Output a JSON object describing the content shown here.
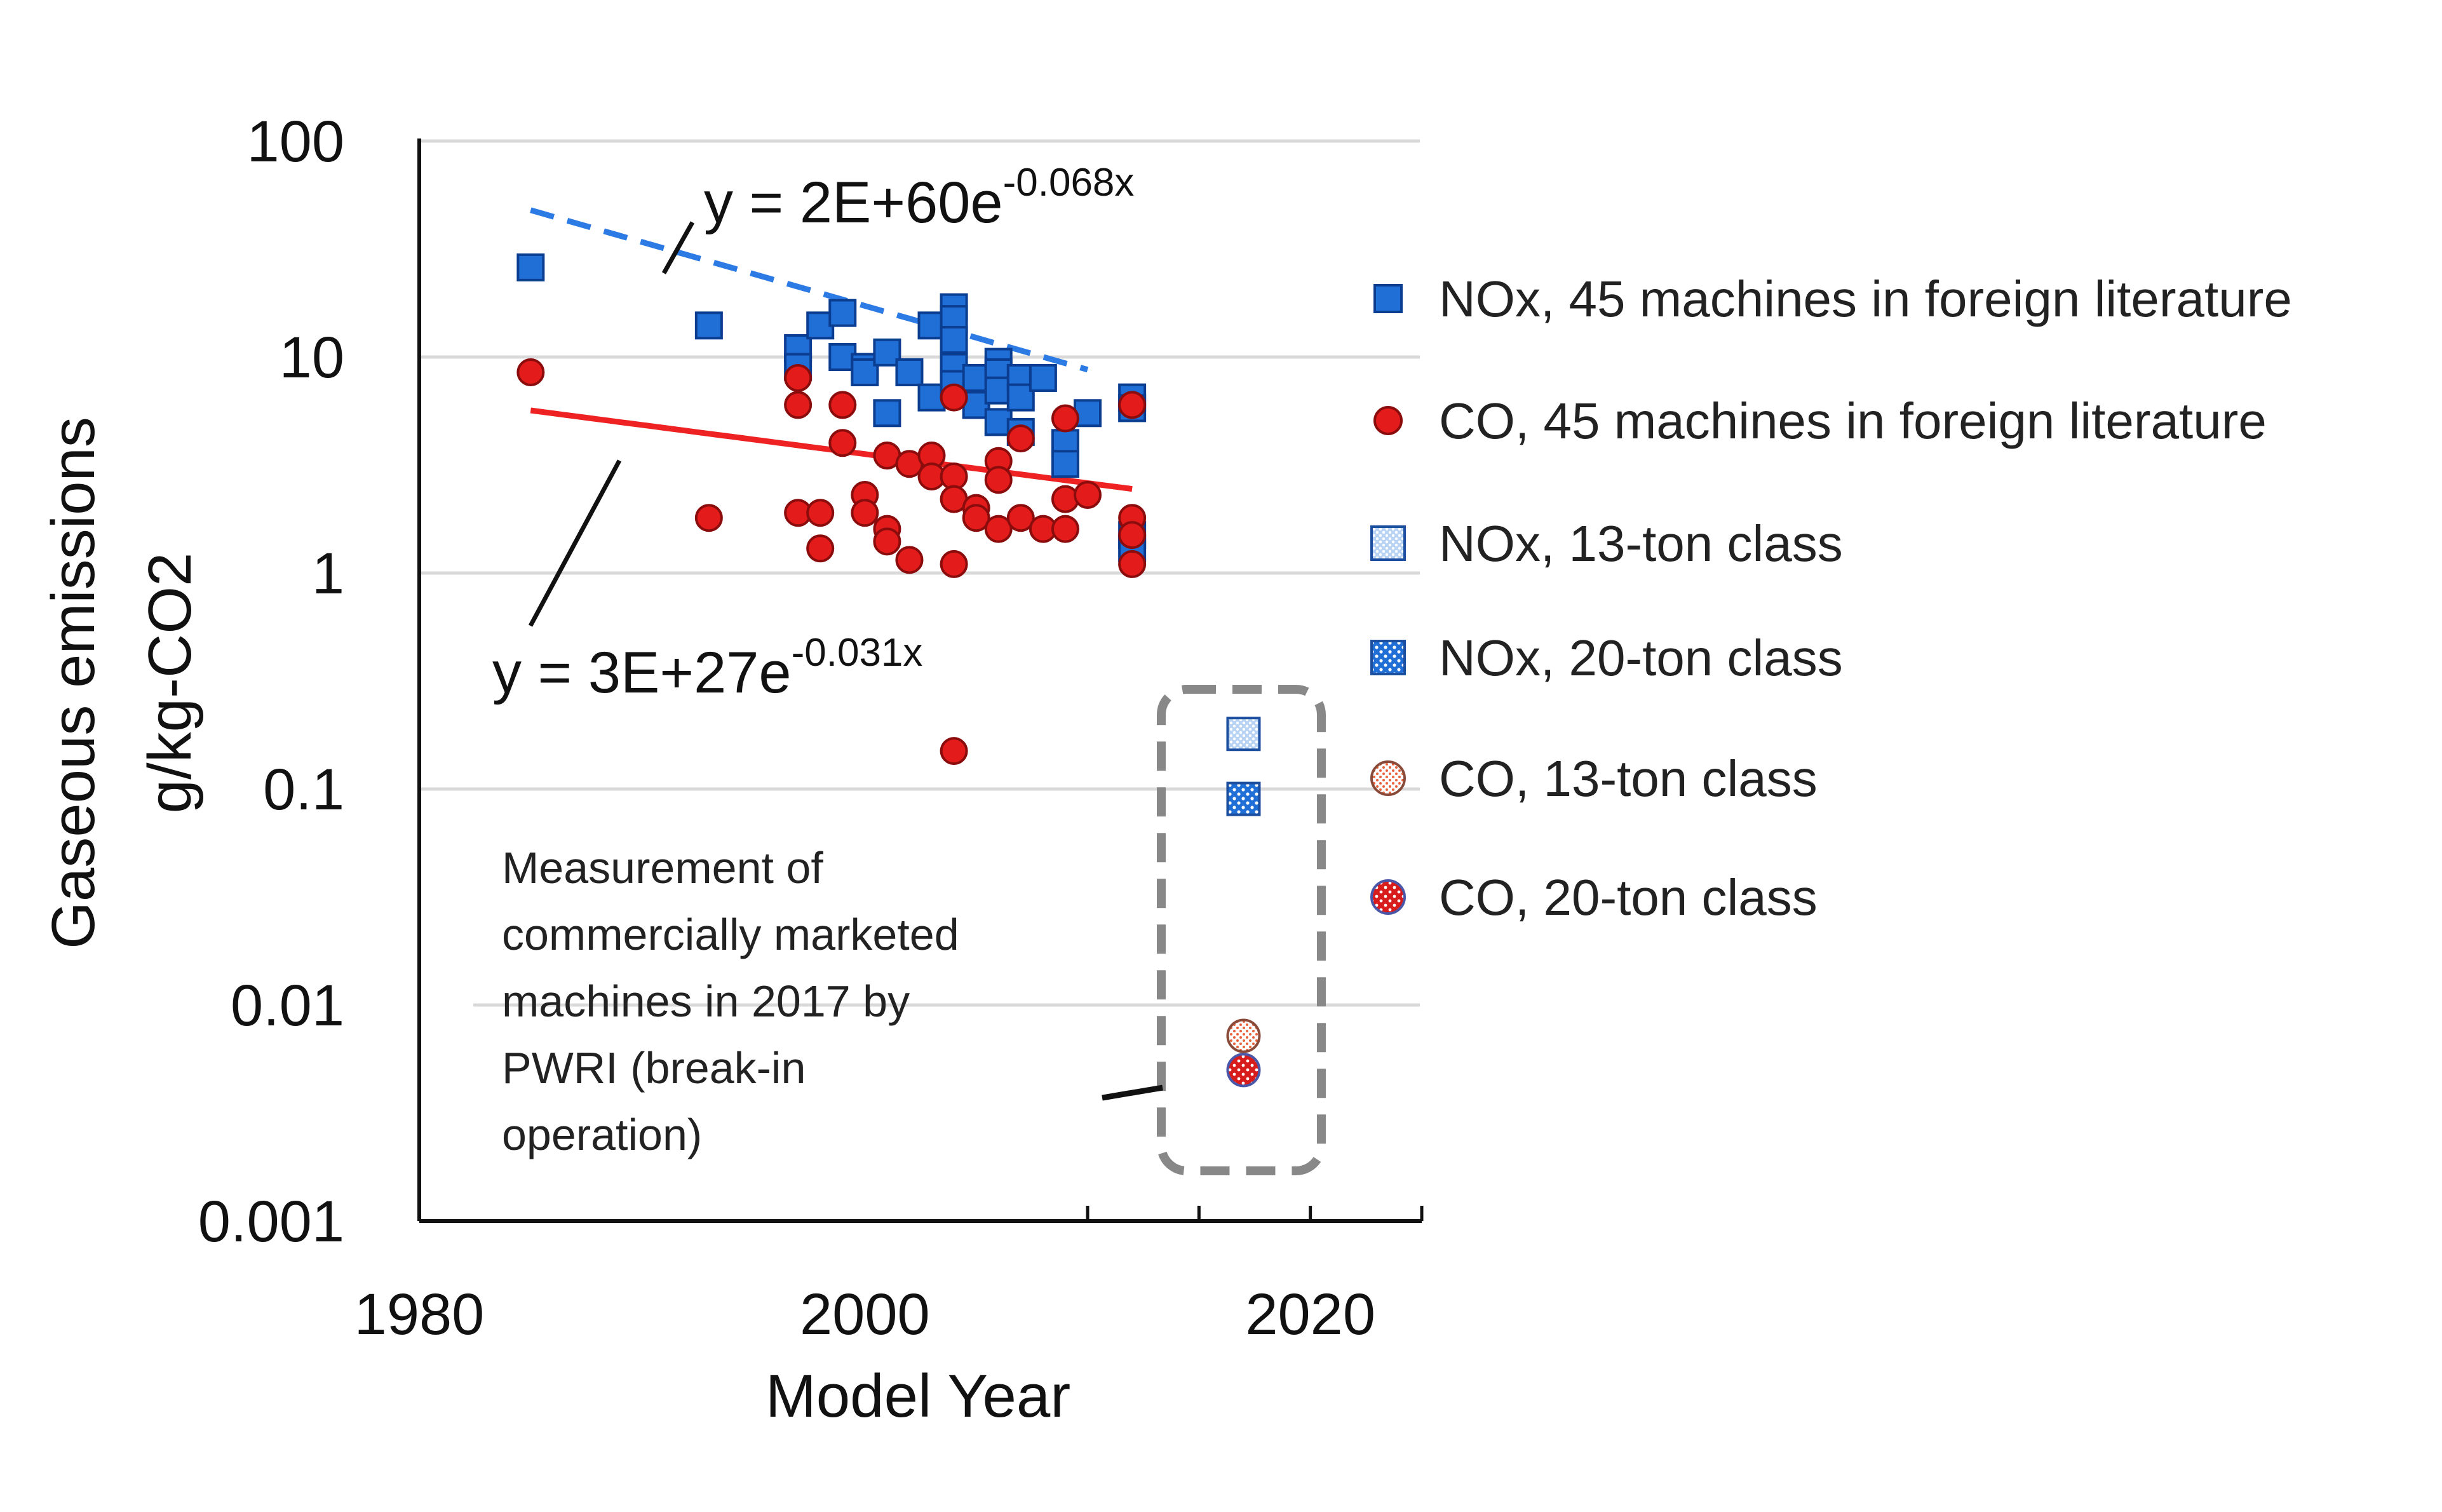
{
  "chart_data": {
    "type": "scatter",
    "xlabel": "Model Year",
    "ylabel_line1": "Gaseous emissions",
    "ylabel_line2": "g/kg-CO2",
    "xlim": [
      1980,
      2025
    ],
    "ylim": [
      0.001,
      100
    ],
    "y_scale": "log",
    "x_ticks": [
      "1980",
      "2000",
      "2020"
    ],
    "y_ticks": [
      "100",
      "10",
      "1",
      "0.1",
      "0.01",
      "0.001"
    ],
    "grid": "horizontal",
    "legend_position": "right",
    "colors": {
      "nox": "#1f6fd6",
      "co": "#e31b1b",
      "nox_trend": "#2c7be5",
      "co_trend": "#ee2222",
      "box": "#888888"
    },
    "trendlines": [
      {
        "series": "nox_foreign",
        "style": "dashed",
        "equation_main": "y = 2E+60e",
        "equation_exp": "-0.068x",
        "a": 2e+60,
        "b": -0.068,
        "x_range": [
          1985,
          2010
        ]
      },
      {
        "series": "co_foreign",
        "style": "solid",
        "equation_main": "y = 3E+27e",
        "equation_exp": "-0.031x",
        "a": 3e+27,
        "b": -0.031,
        "x_range": [
          1985,
          2012
        ]
      }
    ],
    "series": [
      {
        "id": "nox_foreign",
        "name": "NOx, 45 machines in foreign literature",
        "marker": "square",
        "fill": "solid",
        "points": [
          [
            1985,
            26
          ],
          [
            1993,
            14
          ],
          [
            1997,
            11
          ],
          [
            1997,
            9
          ],
          [
            1998,
            14
          ],
          [
            1999,
            16
          ],
          [
            1999,
            10
          ],
          [
            2000,
            9
          ],
          [
            2000,
            8.5
          ],
          [
            2001,
            10.5
          ],
          [
            2001,
            5.5
          ],
          [
            2002,
            8.5
          ],
          [
            2003,
            14
          ],
          [
            2003,
            6.5
          ],
          [
            2004,
            17
          ],
          [
            2004,
            15
          ],
          [
            2004,
            12
          ],
          [
            2004,
            9
          ],
          [
            2004,
            7.5
          ],
          [
            2005,
            8
          ],
          [
            2005,
            6
          ],
          [
            2006,
            9.5
          ],
          [
            2006,
            8.5
          ],
          [
            2006,
            7
          ],
          [
            2006,
            5
          ],
          [
            2007,
            8
          ],
          [
            2007,
            6.5
          ],
          [
            2007,
            4.5
          ],
          [
            2008,
            8
          ],
          [
            2009,
            4
          ],
          [
            2009,
            3.2
          ],
          [
            2010,
            5.5
          ],
          [
            2012,
            6.5
          ],
          [
            2012,
            5.8
          ],
          [
            2012,
            1.5
          ],
          [
            2012,
            1.3
          ]
        ]
      },
      {
        "id": "co_foreign",
        "name": "CO, 45 machines in foreign literature",
        "marker": "circle",
        "fill": "solid",
        "points": [
          [
            1985,
            8.5
          ],
          [
            1993,
            1.8
          ],
          [
            1997,
            8
          ],
          [
            1997,
            6
          ],
          [
            1997,
            1.9
          ],
          [
            1998,
            1.9
          ],
          [
            1998,
            1.3
          ],
          [
            1999,
            6
          ],
          [
            1999,
            4
          ],
          [
            2000,
            2.3
          ],
          [
            2000,
            1.9
          ],
          [
            2001,
            3.5
          ],
          [
            2001,
            1.6
          ],
          [
            2001,
            1.4
          ],
          [
            2002,
            3.2
          ],
          [
            2002,
            1.15
          ],
          [
            2003,
            3.5
          ],
          [
            2003,
            2.8
          ],
          [
            2004,
            6.5
          ],
          [
            2004,
            2.8
          ],
          [
            2004,
            2.2
          ],
          [
            2004,
            1.1
          ],
          [
            2004,
            0.15
          ],
          [
            2005,
            2
          ],
          [
            2005,
            1.8
          ],
          [
            2006,
            3.3
          ],
          [
            2006,
            2.7
          ],
          [
            2006,
            1.6
          ],
          [
            2007,
            4.2
          ],
          [
            2007,
            1.8
          ],
          [
            2008,
            1.6
          ],
          [
            2009,
            5.2
          ],
          [
            2009,
            2.2
          ],
          [
            2009,
            1.6
          ],
          [
            2010,
            2.3
          ],
          [
            2012,
            6
          ],
          [
            2012,
            1.8
          ],
          [
            2012,
            1.5
          ],
          [
            2012,
            1.1
          ]
        ]
      },
      {
        "id": "nox_13",
        "name": "NOx, 13-ton class",
        "marker": "square",
        "fill": "dotted-light",
        "points": [
          [
            2017,
            0.18
          ]
        ]
      },
      {
        "id": "nox_20",
        "name": "NOx, 20-ton class",
        "marker": "square",
        "fill": "dotted",
        "points": [
          [
            2017,
            0.09
          ]
        ]
      },
      {
        "id": "co_13",
        "name": "CO, 13-ton class",
        "marker": "circle",
        "fill": "dotted-light",
        "points": [
          [
            2017,
            0.0072
          ]
        ]
      },
      {
        "id": "co_20",
        "name": "CO, 20-ton class",
        "marker": "circle",
        "fill": "dotted",
        "points": [
          [
            2017,
            0.005
          ]
        ]
      }
    ],
    "annotation": {
      "lines": [
        "Measurement of",
        "commercially marketed",
        "machines in 2017 by",
        "PWRI (break-in",
        "operation)"
      ]
    }
  }
}
